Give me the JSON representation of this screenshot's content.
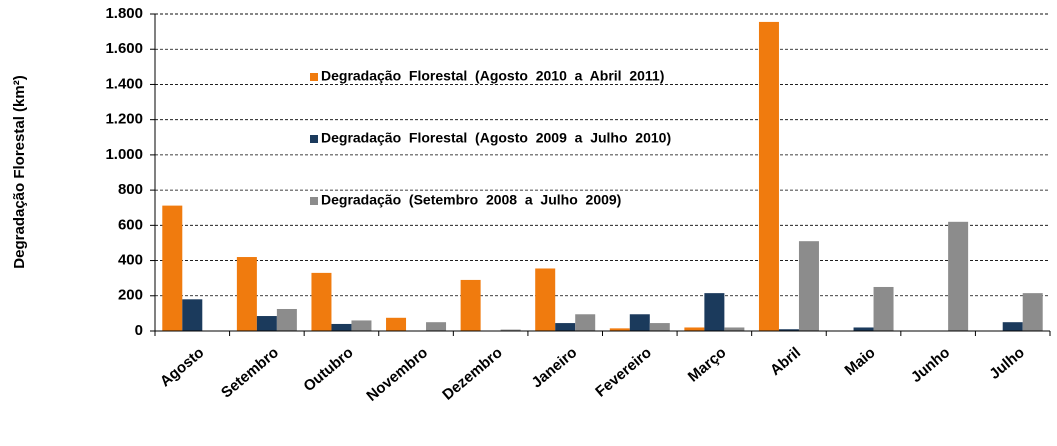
{
  "chart_data": {
    "type": "bar",
    "y_label": "Degradação Florestal (km²)",
    "categories": [
      "Agosto",
      "Setembro",
      "Outubro",
      "Novembro",
      "Dezembro",
      "Janeiro",
      "Fevereiro",
      "Março",
      "Abril",
      "Maio",
      "Junho",
      "Julho"
    ],
    "series": [
      {
        "name": "Degradação  Florestal  (Agosto  2010  a  Abril  2011)",
        "color": "#f07b0e",
        "values": [
          712,
          420,
          330,
          75,
          290,
          355,
          15,
          20,
          1755,
          null,
          null,
          null
        ]
      },
      {
        "name": "Degradação  Florestal  (Agosto  2009  a  Julho  2010)",
        "color": "#1b3a5c",
        "values": [
          180,
          85,
          40,
          0,
          0,
          45,
          95,
          215,
          10,
          20,
          0,
          50
        ]
      },
      {
        "name": "Degradação  (Setembro  2008  a  Julho  2009)",
        "color": "#8c8c8c",
        "values": [
          null,
          125,
          60,
          50,
          8,
          95,
          45,
          20,
          510,
          250,
          620,
          215
        ]
      }
    ],
    "ylim": [
      0,
      1800
    ],
    "yticks": [
      0,
      200,
      400,
      600,
      800,
      {
        "value": 1000,
        "label": "1.000"
      },
      {
        "value": 1200,
        "label": "1.200"
      },
      {
        "value": 1400,
        "label": "1.400"
      },
      {
        "value": 1600,
        "label": "1.600"
      },
      {
        "value": 1800,
        "label": "1.800"
      }
    ],
    "grid": true
  }
}
